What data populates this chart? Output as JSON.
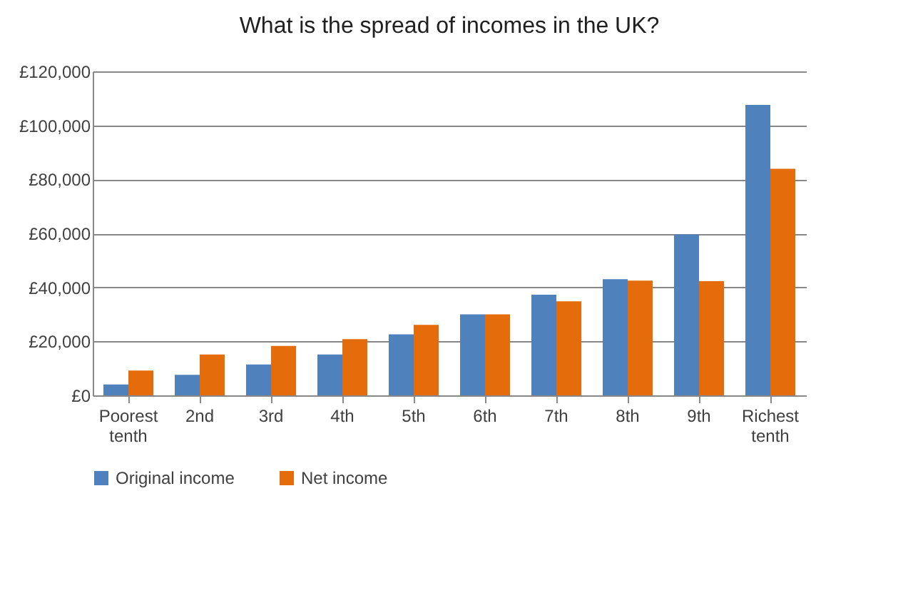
{
  "chart_data": {
    "type": "bar",
    "title": "What is the spread of incomes in the UK?",
    "categories": [
      "Poorest tenth",
      "2nd",
      "3rd",
      "4th",
      "5th",
      "6th",
      "7th",
      "8th",
      "9th",
      "Richest tenth"
    ],
    "series": [
      {
        "name": "Original income",
        "color": "#4f81bd",
        "values": [
          4000,
          7600,
          11400,
          15100,
          22600,
          30000,
          37300,
          43000,
          59600,
          107600
        ]
      },
      {
        "name": "Net income",
        "color": "#e46c0a",
        "values": [
          9200,
          15100,
          18300,
          20800,
          26100,
          30000,
          34800,
          42500,
          42300,
          83900
        ]
      }
    ],
    "ylim": [
      0,
      120000
    ],
    "yticks": [
      {
        "value": 0,
        "label": "£0"
      },
      {
        "value": 20000,
        "label": "£20,000"
      },
      {
        "value": 40000,
        "label": "£40,000"
      },
      {
        "value": 60000,
        "label": "£60,000"
      },
      {
        "value": 80000,
        "label": "£80,000"
      },
      {
        "value": 100000,
        "label": "£100,000"
      },
      {
        "value": 120000,
        "label": "£120,000"
      }
    ],
    "grid": "y",
    "legend": "bottom"
  }
}
